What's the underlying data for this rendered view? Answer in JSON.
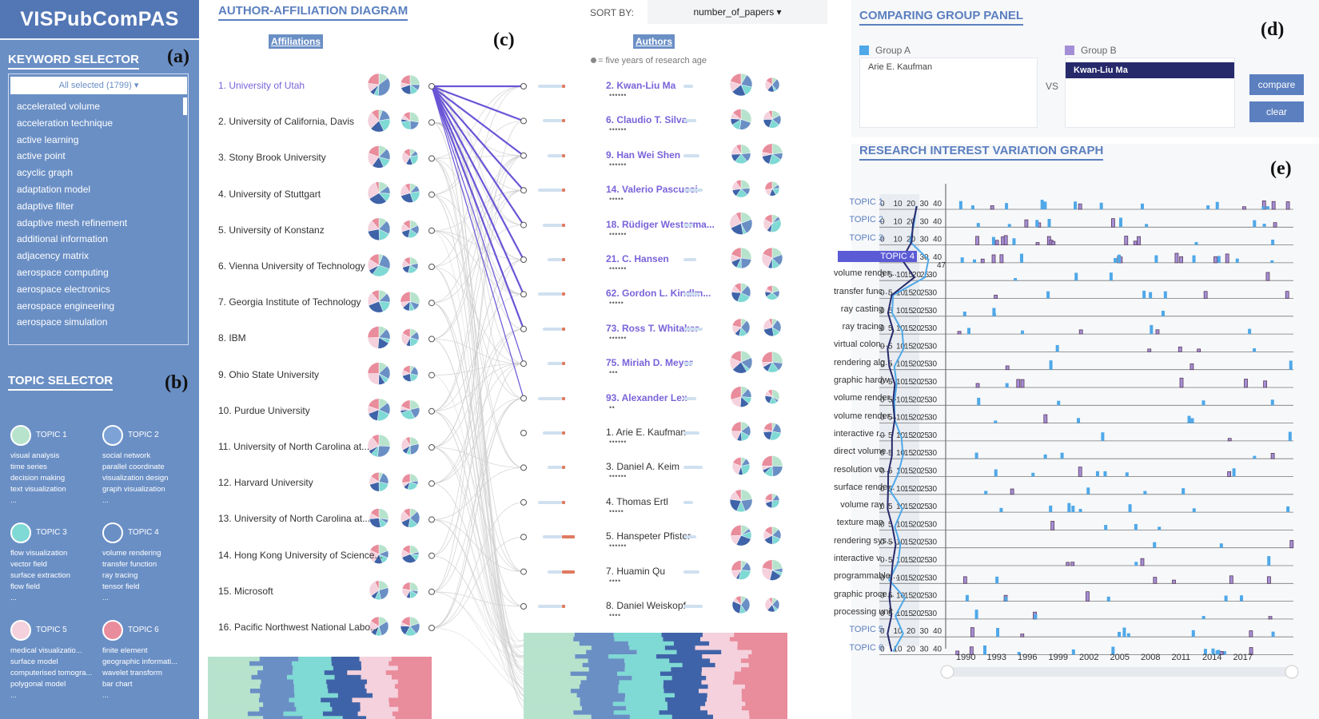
{
  "app": {
    "title": "VISPubComPAS"
  },
  "keyword_selector": {
    "title": "KEYWORD SELECTOR",
    "tag": "(a)",
    "select_label": "All selected (1799) ▾",
    "items": [
      "accelerated volume",
      "acceleration technique",
      "active learning",
      "active point",
      "acyclic graph",
      "adaptation model",
      "adaptive filter",
      "adaptive mesh refinement",
      "additional information",
      "adjacency matrix",
      "aerospace computing",
      "aerospace electronics",
      "aerospace engineering",
      "aerospace simulation"
    ]
  },
  "topic_selector": {
    "title": "TOPIC SELECTOR",
    "tag": "(b)",
    "topics": [
      {
        "name": "TOPIC 1",
        "color": "#b7e3cd",
        "keywords": [
          "visual analysis",
          "time series",
          "decision making",
          "text visualization",
          "..."
        ]
      },
      {
        "name": "TOPIC 2",
        "color": "#6a8fc5",
        "keywords": [
          "social network",
          "parallel coordinate",
          "visualization design",
          "graph visualization",
          "..."
        ]
      },
      {
        "name": "TOPIC 3",
        "color": "#7fd9d4",
        "keywords": [
          "flow visualization",
          "vector field",
          "surface extraction",
          "flow field",
          "..."
        ]
      },
      {
        "name": "TOPIC 4",
        "color": "#6a8fc5",
        "keywords": [
          "volume rendering",
          "transfer function",
          "ray tracing",
          "tensor field",
          "..."
        ]
      },
      {
        "name": "TOPIC 5",
        "color": "#f4d1dc",
        "keywords": [
          "medical visualizatio...",
          "surface model",
          "computerised tomogra...",
          "polygonal model",
          "..."
        ]
      },
      {
        "name": "TOPIC 6",
        "color": "#e98c9c",
        "keywords": [
          "finite element",
          "geographic informati...",
          "wavelet transform",
          "bar chart",
          "..."
        ]
      }
    ]
  },
  "diagram": {
    "title": "AUTHOR-AFFILIATION DIAGRAM",
    "tag": "(c)",
    "sort_label": "SORT BY:",
    "sort_value": "number_of_papers ▾",
    "affiliations_header": "Affiliations",
    "authors_header": "Authors",
    "legend_note": "= five years of research age",
    "affiliations": [
      "1. University of Utah",
      "2. University of California, Davis",
      "3. Stony Brook University",
      "4. University of Stuttgart",
      "5. University of Konstanz",
      "6. Vienna University of Technology",
      "7. Georgia Institute of Technology",
      "8. IBM",
      "9. Ohio State University",
      "10. Purdue University",
      "11. University of North Carolina at...",
      "12. Harvard University",
      "13. University of North Carolina at...",
      "14. Hong Kong University of Science...",
      "15. Microsoft",
      "16. Pacific Northwest National Labo..."
    ],
    "authors": [
      {
        "name": "2. Kwan-Liu Ma",
        "dots": "••••••",
        "hl": true
      },
      {
        "name": "6. Claudio T. Silva",
        "dots": "••••••",
        "hl": true
      },
      {
        "name": "9. Han Wei Shen",
        "dots": "••••••",
        "hl": true
      },
      {
        "name": "14. Valerio Pascucci",
        "dots": "•••••",
        "hl": true
      },
      {
        "name": "18. Rüdiger Westerma...",
        "dots": "••••••",
        "hl": true
      },
      {
        "name": "21. C. Hansen",
        "dots": "••••••",
        "hl": true
      },
      {
        "name": "62. Gordon L. Kindlm...",
        "dots": "•••••",
        "hl": true
      },
      {
        "name": "73. Ross T. Whitaker",
        "dots": "••••••",
        "hl": true
      },
      {
        "name": "75. Miriah D. Meyer",
        "dots": "•••",
        "hl": true
      },
      {
        "name": "93. Alexander Lex",
        "dots": "••",
        "hl": true
      },
      {
        "name": "1. Arie E. Kaufman",
        "dots": "••••••",
        "hl": false
      },
      {
        "name": "3. Daniel A. Keim",
        "dots": "••••••",
        "hl": false
      },
      {
        "name": "4. Thomas Ertl",
        "dots": "•••••",
        "hl": false
      },
      {
        "name": "5. Hanspeter Pfister",
        "dots": "••••••",
        "hl": false
      },
      {
        "name": "7. Huamin Qu",
        "dots": "••••",
        "hl": false
      },
      {
        "name": "8. Daniel Weiskopf",
        "dots": "••••",
        "hl": false
      }
    ]
  },
  "compare": {
    "title": "COMPARING GROUP PANEL",
    "tag": "(d)",
    "group_a_label": "Group A",
    "group_b_label": "Group B",
    "group_a_color": "#4fa8e8",
    "group_b_color": "#a48fd6",
    "group_a_member": "Arie E. Kaufman",
    "group_b_member": "Kwan-Liu Ma",
    "vs": "VS",
    "compare_btn": "compare",
    "clear_btn": "clear"
  },
  "riv": {
    "title": "RESEARCH INTEREST VARIATION GRAPH",
    "tag": "(e)",
    "rows": [
      {
        "label": "TOPIC 1",
        "kind": "topic"
      },
      {
        "label": "TOPIC 2",
        "kind": "topic"
      },
      {
        "label": "TOPIC 3",
        "kind": "topic"
      },
      {
        "label": "TOPIC 4",
        "kind": "selected"
      },
      {
        "label": "volume render...",
        "kind": "kw"
      },
      {
        "label": "transfer func...",
        "kind": "kw"
      },
      {
        "label": "ray casting",
        "kind": "kw"
      },
      {
        "label": "ray tracing",
        "kind": "kw"
      },
      {
        "label": "virtual colon...",
        "kind": "kw"
      },
      {
        "label": "rendering alg...",
        "kind": "kw"
      },
      {
        "label": "graphic hardw...",
        "kind": "kw"
      },
      {
        "label": "volume render...",
        "kind": "kw"
      },
      {
        "label": "volume render...",
        "kind": "kw"
      },
      {
        "label": "interactive r...",
        "kind": "kw"
      },
      {
        "label": "direct volume...",
        "kind": "kw"
      },
      {
        "label": "resolution vo...",
        "kind": "kw"
      },
      {
        "label": "surface rende...",
        "kind": "kw"
      },
      {
        "label": "volume ray",
        "kind": "kw"
      },
      {
        "label": "texture map",
        "kind": "kw"
      },
      {
        "label": "rendering sys...",
        "kind": "kw"
      },
      {
        "label": "interactive v...",
        "kind": "kw"
      },
      {
        "label": "programmable ...",
        "kind": "kw"
      },
      {
        "label": "graphic proce...",
        "kind": "kw"
      },
      {
        "label": "processing unit",
        "kind": "kw"
      },
      {
        "label": "TOPIC 5",
        "kind": "topic"
      },
      {
        "label": "TOPIC 6",
        "kind": "topic"
      }
    ],
    "years": [
      "1990",
      "1993",
      "1996",
      "1999",
      "2002",
      "2005",
      "2008",
      "2011",
      "2014",
      "2017"
    ],
    "scale_ticks": [
      "0",
      "10",
      "20",
      "30",
      "40"
    ],
    "scale_ticks_kw": [
      "0",
      "5",
      "10",
      "15",
      "20",
      "25",
      "30"
    ],
    "scale_max_label": "47"
  }
}
